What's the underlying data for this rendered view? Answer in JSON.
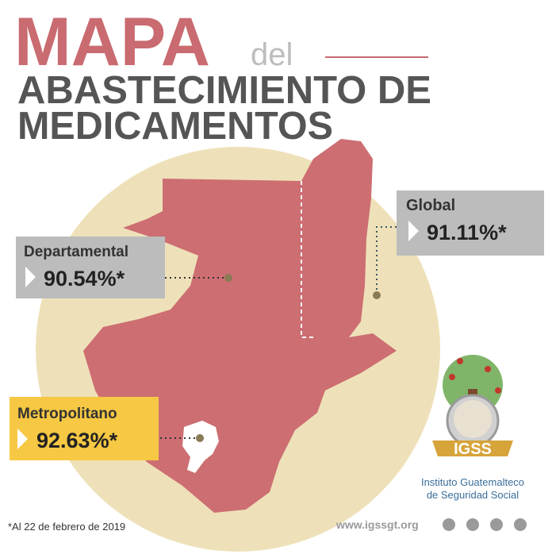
{
  "header": {
    "title": "MAPA",
    "connector": "del",
    "subtitle_line1": "ABASTECIMIENTO DE",
    "subtitle_line2": "MEDICAMENTOS"
  },
  "regions": [
    {
      "label": "Global",
      "value": "91.11%*"
    },
    {
      "label": "Departamental",
      "value": "90.54%*"
    },
    {
      "label": "Metropolitano",
      "value": "92.63%*"
    }
  ],
  "logo": {
    "acronym": "IGSS",
    "name_line1": "Instituto Guatemalteco",
    "name_line2": "de Seguridad Social"
  },
  "footer": {
    "note": "*Al 22 de febrero de 2019",
    "website": "www.igssgt.org"
  }
}
